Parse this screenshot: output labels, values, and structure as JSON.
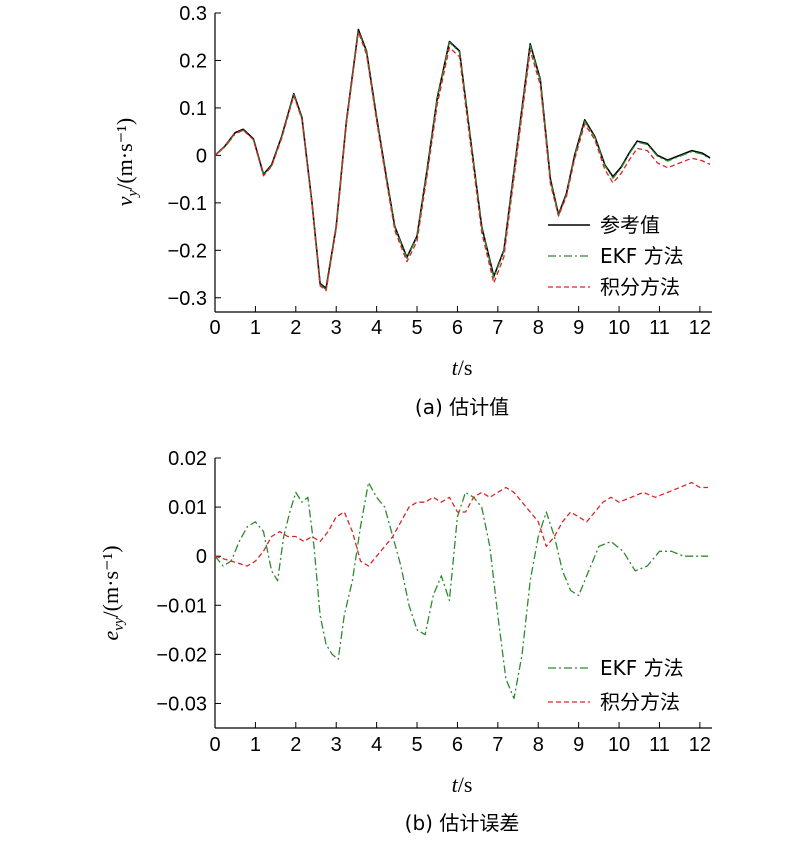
{
  "chart_data": [
    {
      "type": "line",
      "caption": "(a) 估计值",
      "xlabel_var": "t",
      "xlabel_unit": "/s",
      "ylabel_var": "v",
      "ylabel_sub": "y",
      "ylabel_unit": "/(m·s⁻¹)",
      "xlim": [
        0,
        12.3
      ],
      "ylim": [
        -0.33,
        0.3
      ],
      "xticks": [
        0,
        1,
        2,
        3,
        4,
        5,
        6,
        7,
        8,
        9,
        10,
        11,
        12
      ],
      "yticks": [
        -0.3,
        -0.2,
        -0.1,
        0,
        0.1,
        0.2,
        0.3
      ],
      "ytick_labels": [
        "−0.3",
        "−0.2",
        "−0.1",
        "0",
        "0.1",
        "0.2",
        "0.3"
      ],
      "legend_position": "lower-right",
      "series": [
        {
          "name": "参考值",
          "style": "solid",
          "color": "#000000",
          "x": [
            0,
            0.25,
            0.5,
            0.7,
            0.95,
            1.2,
            1.4,
            1.65,
            1.95,
            2.15,
            2.4,
            2.6,
            2.75,
            3.0,
            3.25,
            3.55,
            3.75,
            4.0,
            4.25,
            4.45,
            4.75,
            5.0,
            5.25,
            5.5,
            5.8,
            6.05,
            6.3,
            6.6,
            6.9,
            7.15,
            7.45,
            7.8,
            8.05,
            8.3,
            8.5,
            8.7,
            8.9,
            9.15,
            9.4,
            9.65,
            9.85,
            10.05,
            10.25,
            10.45,
            10.7,
            10.95,
            11.2,
            11.5,
            11.8,
            12.05,
            12.25
          ],
          "values": [
            0.0,
            0.02,
            0.048,
            0.055,
            0.035,
            -0.04,
            -0.02,
            0.04,
            0.13,
            0.08,
            -0.1,
            -0.27,
            -0.28,
            -0.15,
            0.07,
            0.265,
            0.22,
            0.08,
            -0.05,
            -0.15,
            -0.215,
            -0.17,
            -0.03,
            0.12,
            0.24,
            0.22,
            0.05,
            -0.15,
            -0.255,
            -0.2,
            0.0,
            0.235,
            0.16,
            -0.05,
            -0.125,
            -0.08,
            0.0,
            0.075,
            0.04,
            -0.02,
            -0.045,
            -0.025,
            0.005,
            0.03,
            0.025,
            0.0,
            -0.01,
            0.0,
            0.01,
            0.005,
            -0.005
          ]
        },
        {
          "name": "EKF 方法",
          "style": "dashdot",
          "color": "#2e8b2e",
          "x": [
            0,
            0.25,
            0.5,
            0.7,
            0.95,
            1.2,
            1.4,
            1.65,
            1.95,
            2.15,
            2.4,
            2.6,
            2.75,
            3.0,
            3.25,
            3.55,
            3.75,
            4.0,
            4.25,
            4.45,
            4.75,
            5.0,
            5.25,
            5.5,
            5.8,
            6.05,
            6.3,
            6.6,
            6.9,
            7.15,
            7.45,
            7.8,
            8.05,
            8.3,
            8.5,
            8.7,
            8.9,
            9.15,
            9.4,
            9.65,
            9.85,
            10.05,
            10.25,
            10.45,
            10.7,
            10.95,
            11.2,
            11.5,
            11.8,
            12.05,
            12.25
          ],
          "values": [
            0.0,
            0.018,
            0.045,
            0.053,
            0.033,
            -0.042,
            -0.022,
            0.038,
            0.128,
            0.078,
            -0.102,
            -0.272,
            -0.283,
            -0.152,
            0.068,
            0.262,
            0.218,
            0.078,
            -0.052,
            -0.152,
            -0.217,
            -0.172,
            -0.032,
            0.118,
            0.238,
            0.218,
            0.048,
            -0.152,
            -0.258,
            -0.202,
            -0.002,
            0.232,
            0.158,
            -0.052,
            -0.127,
            -0.082,
            -0.002,
            0.072,
            0.038,
            -0.022,
            -0.048,
            -0.027,
            0.003,
            0.028,
            0.023,
            -0.002,
            -0.012,
            -0.002,
            0.008,
            0.003,
            -0.007
          ]
        },
        {
          "name": "积分方法",
          "style": "dashed",
          "color": "#d62728",
          "x": [
            0,
            0.25,
            0.5,
            0.7,
            0.95,
            1.2,
            1.4,
            1.65,
            1.95,
            2.15,
            2.4,
            2.6,
            2.75,
            3.0,
            3.25,
            3.55,
            3.75,
            4.0,
            4.25,
            4.45,
            4.75,
            5.0,
            5.25,
            5.5,
            5.8,
            6.05,
            6.3,
            6.6,
            6.9,
            7.15,
            7.45,
            7.8,
            8.05,
            8.3,
            8.5,
            8.7,
            8.9,
            9.15,
            9.4,
            9.65,
            9.85,
            10.05,
            10.25,
            10.45,
            10.7,
            10.95,
            11.2,
            11.5,
            11.8,
            12.05,
            12.25
          ],
          "values": [
            0.0,
            0.02,
            0.047,
            0.053,
            0.033,
            -0.043,
            -0.023,
            0.036,
            0.126,
            0.076,
            -0.104,
            -0.275,
            -0.285,
            -0.155,
            0.064,
            0.26,
            0.213,
            0.072,
            -0.058,
            -0.158,
            -0.224,
            -0.181,
            -0.042,
            0.107,
            0.227,
            0.208,
            0.038,
            -0.162,
            -0.269,
            -0.214,
            -0.014,
            0.221,
            0.148,
            -0.06,
            -0.128,
            -0.086,
            -0.008,
            0.066,
            0.033,
            -0.03,
            -0.058,
            -0.038,
            -0.01,
            0.015,
            0.01,
            -0.016,
            -0.026,
            -0.016,
            -0.006,
            -0.011,
            -0.019
          ]
        }
      ]
    },
    {
      "type": "line",
      "caption": "(b) 估计误差",
      "xlabel_var": "t",
      "xlabel_unit": "/s",
      "ylabel_var": "e",
      "ylabel_sub": "vy",
      "ylabel_unit": "/(m·s⁻¹)",
      "xlim": [
        0,
        12.3
      ],
      "ylim": [
        -0.035,
        0.02
      ],
      "xticks": [
        0,
        1,
        2,
        3,
        4,
        5,
        6,
        7,
        8,
        9,
        10,
        11,
        12
      ],
      "yticks": [
        -0.03,
        -0.02,
        -0.01,
        0,
        0.01,
        0.02
      ],
      "ytick_labels": [
        "−0.03",
        "−0.02",
        "−0.01",
        "0",
        "0.01",
        "0.02"
      ],
      "legend_position": "lower-right",
      "series": [
        {
          "name": "EKF 方法",
          "style": "dashdot",
          "color": "#2e8b2e",
          "x": [
            0,
            0.2,
            0.4,
            0.6,
            0.8,
            1.0,
            1.2,
            1.4,
            1.55,
            1.7,
            1.85,
            2.0,
            2.15,
            2.3,
            2.45,
            2.6,
            2.75,
            2.9,
            3.05,
            3.2,
            3.4,
            3.6,
            3.8,
            4.0,
            4.2,
            4.4,
            4.6,
            4.8,
            5.0,
            5.2,
            5.4,
            5.6,
            5.8,
            6.0,
            6.2,
            6.4,
            6.6,
            6.8,
            7.0,
            7.2,
            7.4,
            7.6,
            7.8,
            8.0,
            8.2,
            8.4,
            8.6,
            8.8,
            9.0,
            9.2,
            9.5,
            9.8,
            10.1,
            10.4,
            10.7,
            11.0,
            11.3,
            11.6,
            11.9,
            12.2
          ],
          "values": [
            0.0,
            -0.002,
            -0.001,
            0.003,
            0.006,
            0.007,
            0.005,
            -0.003,
            -0.005,
            0.004,
            0.009,
            0.013,
            0.011,
            0.012,
            0.002,
            -0.012,
            -0.018,
            -0.02,
            -0.021,
            -0.012,
            -0.005,
            0.006,
            0.015,
            0.012,
            0.01,
            0.004,
            -0.002,
            -0.01,
            -0.015,
            -0.016,
            -0.008,
            -0.004,
            -0.009,
            0.008,
            0.013,
            0.012,
            0.01,
            0.002,
            -0.012,
            -0.025,
            -0.029,
            -0.02,
            -0.005,
            0.004,
            0.009,
            0.004,
            -0.003,
            -0.007,
            -0.008,
            -0.004,
            0.002,
            0.003,
            0.001,
            -0.003,
            -0.002,
            0.001,
            0.001,
            0.0,
            0.0,
            0.0
          ]
        },
        {
          "name": "积分方法",
          "style": "dashed",
          "color": "#d62728",
          "x": [
            0,
            0.2,
            0.4,
            0.6,
            0.8,
            1.0,
            1.2,
            1.4,
            1.6,
            1.8,
            2.0,
            2.2,
            2.4,
            2.6,
            2.8,
            3.0,
            3.2,
            3.4,
            3.6,
            3.8,
            4.0,
            4.2,
            4.4,
            4.6,
            4.8,
            5.0,
            5.2,
            5.4,
            5.6,
            5.8,
            6.0,
            6.2,
            6.4,
            6.6,
            6.8,
            7.0,
            7.2,
            7.4,
            7.6,
            7.8,
            8.0,
            8.2,
            8.4,
            8.6,
            8.8,
            9.0,
            9.2,
            9.4,
            9.6,
            9.8,
            10.0,
            10.3,
            10.6,
            10.9,
            11.2,
            11.5,
            11.8,
            12.0,
            12.2
          ],
          "values": [
            0.0,
            -0.0005,
            -0.001,
            -0.0015,
            -0.002,
            -0.001,
            0.001,
            0.004,
            0.005,
            0.004,
            0.004,
            0.003,
            0.004,
            0.003,
            0.005,
            0.008,
            0.009,
            0.005,
            -0.001,
            -0.002,
            0.0,
            0.002,
            0.004,
            0.007,
            0.01,
            0.011,
            0.011,
            0.012,
            0.011,
            0.012,
            0.009,
            0.009,
            0.012,
            0.013,
            0.012,
            0.013,
            0.014,
            0.013,
            0.011,
            0.009,
            0.007,
            0.002,
            0.004,
            0.007,
            0.009,
            0.008,
            0.007,
            0.009,
            0.011,
            0.012,
            0.011,
            0.012,
            0.013,
            0.012,
            0.013,
            0.014,
            0.015,
            0.014,
            0.014
          ]
        }
      ]
    }
  ]
}
